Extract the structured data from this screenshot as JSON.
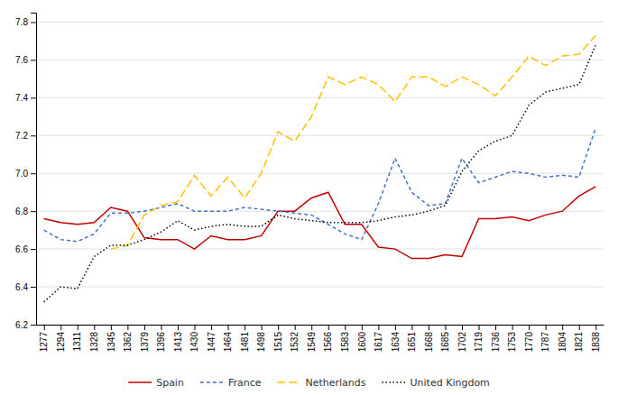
{
  "chart_data": {
    "type": "line",
    "x": [
      1277,
      1294,
      1311,
      1328,
      1345,
      1362,
      1379,
      1396,
      1413,
      1430,
      1447,
      1464,
      1481,
      1498,
      1515,
      1532,
      1549,
      1566,
      1583,
      1600,
      1617,
      1634,
      1651,
      1668,
      1685,
      1702,
      1719,
      1736,
      1753,
      1770,
      1787,
      1804,
      1821,
      1838
    ],
    "series": [
      {
        "name": "Spain",
        "color": "#c00000",
        "line_style": "solid",
        "values": [
          6.76,
          6.74,
          6.73,
          6.74,
          6.82,
          6.8,
          6.66,
          6.65,
          6.65,
          6.6,
          6.67,
          6.65,
          6.65,
          6.67,
          6.8,
          6.8,
          6.87,
          6.9,
          6.73,
          6.73,
          6.61,
          6.6,
          6.55,
          6.55,
          6.57,
          6.56,
          6.76,
          6.76,
          6.77,
          6.75,
          6.78,
          6.8,
          6.88,
          6.93
        ]
      },
      {
        "name": "France",
        "color": "#4472c4",
        "line_style": "dashed",
        "values": [
          6.7,
          6.65,
          6.64,
          6.68,
          6.79,
          6.79,
          6.8,
          6.82,
          6.84,
          6.8,
          6.8,
          6.8,
          6.82,
          6.81,
          6.8,
          6.79,
          6.78,
          6.73,
          6.68,
          6.65,
          6.84,
          7.08,
          6.9,
          6.83,
          6.84,
          7.08,
          6.95,
          6.98,
          7.01,
          7.0,
          6.98,
          6.99,
          6.98,
          7.24
        ]
      },
      {
        "name": "Netherlands",
        "color": "#ffc000",
        "line_style": "longdash",
        "values": [
          null,
          null,
          null,
          null,
          6.6,
          6.62,
          6.78,
          6.83,
          6.85,
          6.99,
          6.88,
          6.98,
          6.87,
          7.0,
          7.22,
          7.17,
          7.3,
          7.51,
          7.47,
          7.51,
          7.47,
          7.38,
          7.51,
          7.51,
          7.46,
          7.51,
          7.47,
          7.41,
          7.51,
          7.62,
          7.57,
          7.62,
          7.63,
          7.73
        ]
      },
      {
        "name": "United Kingdom",
        "color": "#000000",
        "line_style": "dotted",
        "values": [
          6.32,
          6.4,
          6.39,
          6.56,
          6.62,
          6.62,
          6.65,
          6.69,
          6.75,
          6.7,
          6.72,
          6.73,
          6.72,
          6.72,
          6.78,
          6.76,
          6.75,
          6.74,
          6.74,
          6.74,
          6.75,
          6.77,
          6.78,
          6.8,
          6.83,
          7.01,
          7.12,
          7.17,
          7.2,
          7.36,
          7.43,
          7.45,
          7.47,
          7.68
        ]
      }
    ],
    "xlim": [
      1269,
      1846
    ],
    "xticks": [
      1277,
      1294,
      1311,
      1328,
      1345,
      1362,
      1379,
      1396,
      1413,
      1430,
      1447,
      1464,
      1481,
      1498,
      1515,
      1532,
      1549,
      1566,
      1583,
      1600,
      1617,
      1634,
      1651,
      1668,
      1685,
      1702,
      1719,
      1736,
      1753,
      1770,
      1787,
      1804,
      1821,
      1838
    ],
    "ylim": [
      6.2,
      7.85
    ],
    "yticks": [
      6.2,
      6.4,
      6.6,
      6.8,
      {
        "value": 7.0,
        "label": "7.0"
      },
      7.2,
      7.4,
      7.6,
      7.8
    ],
    "grid": true,
    "legend": "bottom"
  }
}
